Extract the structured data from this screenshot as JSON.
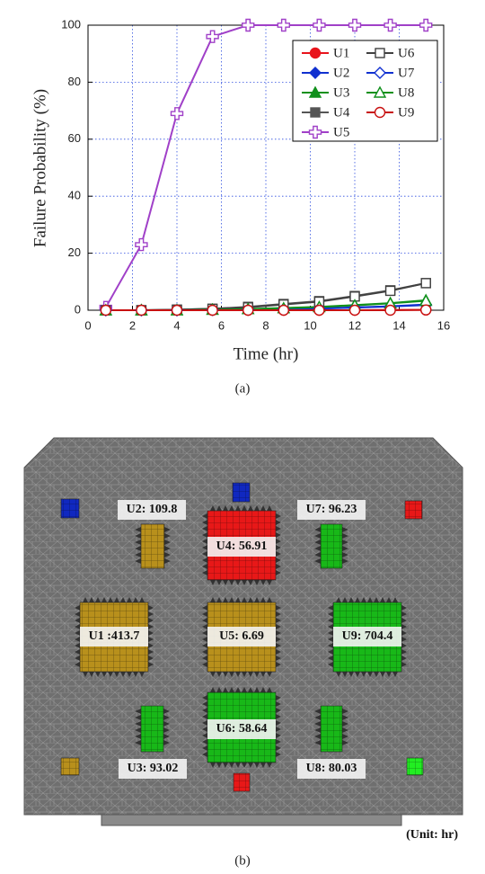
{
  "chart_data": {
    "type": "line",
    "xlabel": "Time (hr)",
    "ylabel": "Failure Probability (%)",
    "caption": "(a)",
    "x": [
      0.8,
      2.4,
      4.0,
      5.6,
      7.2,
      8.8,
      10.4,
      12.0,
      13.6,
      15.2
    ],
    "xlim": [
      0,
      16
    ],
    "xticks": [
      0,
      2,
      4,
      6,
      8,
      10,
      12,
      14,
      16
    ],
    "ylim": [
      0,
      100
    ],
    "yticks": [
      0,
      20,
      40,
      60,
      80,
      100
    ],
    "grid": true,
    "legend": "upper right",
    "series": [
      {
        "name": "U1",
        "color": "#e8141c",
        "marker": "circle",
        "filled": true,
        "values": [
          0,
          0,
          0,
          0,
          0,
          0,
          0,
          0,
          0.1,
          0.1
        ]
      },
      {
        "name": "U2",
        "color": "#1030d0",
        "marker": "diamond",
        "filled": true,
        "values": [
          0,
          0,
          0,
          0.1,
          0.2,
          0.4,
          0.6,
          1,
          1.4,
          2
        ]
      },
      {
        "name": "U3",
        "color": "#10901c",
        "marker": "triangle",
        "filled": true,
        "values": [
          0,
          0,
          0,
          0.2,
          0.4,
          0.8,
          1.2,
          1.8,
          2.5,
          3.5
        ]
      },
      {
        "name": "U4",
        "color": "#555555",
        "marker": "square",
        "filled": true,
        "values": [
          0,
          0,
          0.2,
          0.5,
          1.2,
          2.2,
          3.2,
          5,
          7,
          9.5
        ]
      },
      {
        "name": "U5",
        "color": "#a040c8",
        "marker": "plus",
        "filled": false,
        "values": [
          1,
          23,
          69,
          96,
          100,
          100,
          100,
          100,
          100,
          100
        ]
      },
      {
        "name": "U6",
        "color": "#404040",
        "marker": "square",
        "filled": false,
        "values": [
          0,
          0,
          0.2,
          0.5,
          1,
          2,
          3,
          4.8,
          6.8,
          9.5
        ]
      },
      {
        "name": "U7",
        "color": "#1030d0",
        "marker": "diamond",
        "filled": false,
        "values": [
          0,
          0,
          0,
          0.1,
          0.2,
          0.4,
          0.6,
          0.9,
          1.3,
          1.8
        ]
      },
      {
        "name": "U8",
        "color": "#10901c",
        "marker": "triangle",
        "filled": false,
        "values": [
          0,
          0,
          0,
          0.2,
          0.4,
          0.7,
          1.1,
          1.7,
          2.4,
          3.3
        ]
      },
      {
        "name": "U9",
        "color": "#c81010",
        "marker": "circle",
        "filled": false,
        "values": [
          0,
          0,
          0,
          0,
          0,
          0,
          0,
          0,
          0,
          0.1
        ]
      }
    ]
  },
  "figure": {
    "caption": "(b)",
    "unit": "(Unit: hr)",
    "labels": [
      "U2: 109.8",
      "U4: 56.91",
      "U7: 96.23",
      "U1 :413.7",
      "U5: 6.69",
      "U9: 704.4",
      "U3: 93.02",
      "U6: 58.64",
      "U8: 80.03"
    ]
  }
}
